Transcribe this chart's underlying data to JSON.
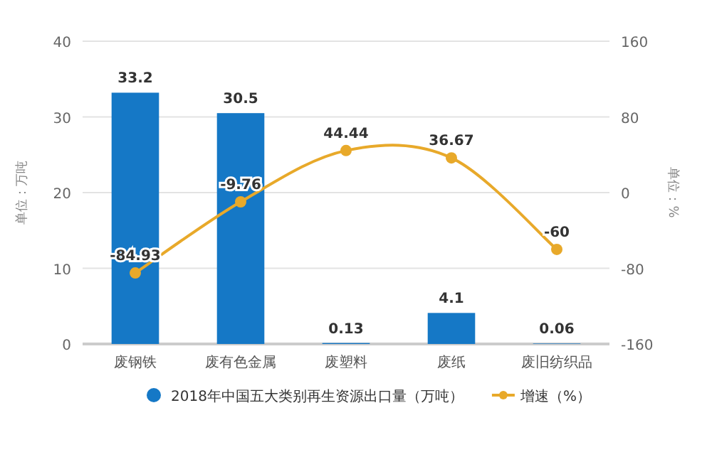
{
  "chart_data": {
    "type": "bar",
    "ylabel": "单位：万吨",
    "y2label": "单位：%",
    "categories": [
      "废钢铁",
      "废有色金属",
      "废塑料",
      "废纸",
      "废旧纺织品"
    ],
    "series": [
      {
        "name": "2018年中国五大类别再生资源出口量（万吨）",
        "color": "#1578c6",
        "values": [
          33.2,
          30.5,
          0.13,
          4.1,
          0.06
        ]
      },
      {
        "name": "增速（%）",
        "type": "line",
        "axis": "y2",
        "color": "#e8a92a",
        "marker": "circle",
        "values": [
          -84.93,
          -9.76,
          44.44,
          36.67,
          -60
        ]
      }
    ],
    "ylim": [
      0,
      40
    ],
    "yticks": [
      0,
      10,
      20,
      30,
      40
    ],
    "y2lim": [
      -160,
      160
    ],
    "y2ticks": [
      -160,
      -80,
      0,
      80,
      160
    ],
    "grid": "y",
    "legend": "bottom",
    "data_labels": true
  }
}
